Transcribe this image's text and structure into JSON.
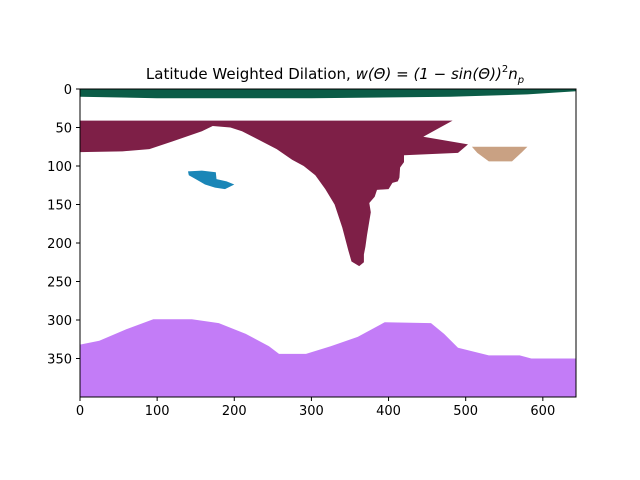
{
  "chart_data": {
    "type": "heatmap",
    "title": "Latitude Weighted Dilation, w(Θ) = (1 − sin(Θ))²n_p",
    "title_parts": {
      "prefix": "Latitude Weighted Dilation, ",
      "formula_lhs": "w(Θ) = (1 − sin(Θ))",
      "exponent": "2",
      "factor": "n",
      "subscript": "p"
    },
    "xlabel": "",
    "ylabel": "",
    "xlim": [
      0,
      643
    ],
    "ylim": [
      400,
      0
    ],
    "y_inverted": true,
    "grid": false,
    "x_ticks": [
      0,
      100,
      200,
      300,
      400,
      500,
      600
    ],
    "y_ticks": [
      0,
      50,
      100,
      150,
      200,
      250,
      300,
      350
    ],
    "x_tick_labels": [
      "0",
      "100",
      "200",
      "300",
      "400",
      "500",
      "600"
    ],
    "y_tick_labels": [
      "0",
      "50",
      "100",
      "150",
      "200",
      "250",
      "300",
      "350"
    ],
    "regions": [
      {
        "id": "dark-green-band",
        "color": "#0b5c47",
        "points": [
          [
            0,
            0
          ],
          [
            643,
            0
          ],
          [
            643,
            3
          ],
          [
            580,
            7
          ],
          [
            480,
            10
          ],
          [
            300,
            12
          ],
          [
            100,
            12
          ],
          [
            0,
            10
          ]
        ]
      },
      {
        "id": "maroon-region",
        "color": "#7e1f47",
        "points": [
          [
            0,
            41
          ],
          [
            483,
            41
          ],
          [
            445,
            62
          ],
          [
            503,
            72
          ],
          [
            490,
            83
          ],
          [
            420,
            86
          ],
          [
            420,
            88
          ],
          [
            420,
            92
          ],
          [
            420,
            95
          ],
          [
            415,
            102
          ],
          [
            414,
            115
          ],
          [
            412,
            120
          ],
          [
            405,
            122
          ],
          [
            400,
            130
          ],
          [
            385,
            131
          ],
          [
            382,
            140
          ],
          [
            375,
            148
          ],
          [
            377,
            160
          ],
          [
            372,
            190
          ],
          [
            370,
            205
          ],
          [
            368,
            215
          ],
          [
            368,
            225
          ],
          [
            362,
            230
          ],
          [
            352,
            224
          ],
          [
            348,
            210
          ],
          [
            340,
            180
          ],
          [
            330,
            150
          ],
          [
            318,
            130
          ],
          [
            305,
            112
          ],
          [
            290,
            100
          ],
          [
            275,
            92
          ],
          [
            255,
            78
          ],
          [
            230,
            65
          ],
          [
            210,
            55
          ],
          [
            195,
            50
          ],
          [
            172,
            48
          ],
          [
            158,
            55
          ],
          [
            120,
            68
          ],
          [
            90,
            78
          ],
          [
            55,
            81
          ],
          [
            0,
            82
          ]
        ]
      },
      {
        "id": "blue-blob",
        "color": "#1a86b7",
        "points": [
          [
            140,
            107
          ],
          [
            158,
            106
          ],
          [
            176,
            108
          ],
          [
            177,
            117
          ],
          [
            190,
            120
          ],
          [
            200,
            124
          ],
          [
            188,
            130
          ],
          [
            175,
            128
          ],
          [
            162,
            124
          ],
          [
            150,
            117
          ],
          [
            141,
            112
          ]
        ]
      },
      {
        "id": "tan-region",
        "color": "#c9a183",
        "points": [
          [
            508,
            75
          ],
          [
            580,
            75
          ],
          [
            573,
            82
          ],
          [
            560,
            94
          ],
          [
            530,
            94
          ],
          [
            515,
            83
          ]
        ]
      },
      {
        "id": "purple-region",
        "color": "#c37cf7",
        "points": [
          [
            0,
            332
          ],
          [
            25,
            327
          ],
          [
            60,
            312
          ],
          [
            95,
            299
          ],
          [
            145,
            299
          ],
          [
            180,
            304
          ],
          [
            215,
            318
          ],
          [
            245,
            334
          ],
          [
            258,
            344
          ],
          [
            293,
            344
          ],
          [
            325,
            334
          ],
          [
            360,
            322
          ],
          [
            395,
            303
          ],
          [
            455,
            304
          ],
          [
            472,
            318
          ],
          [
            490,
            336
          ],
          [
            530,
            346
          ],
          [
            570,
            346
          ],
          [
            585,
            350
          ],
          [
            643,
            350
          ],
          [
            643,
            400
          ],
          [
            0,
            400
          ]
        ]
      }
    ]
  }
}
